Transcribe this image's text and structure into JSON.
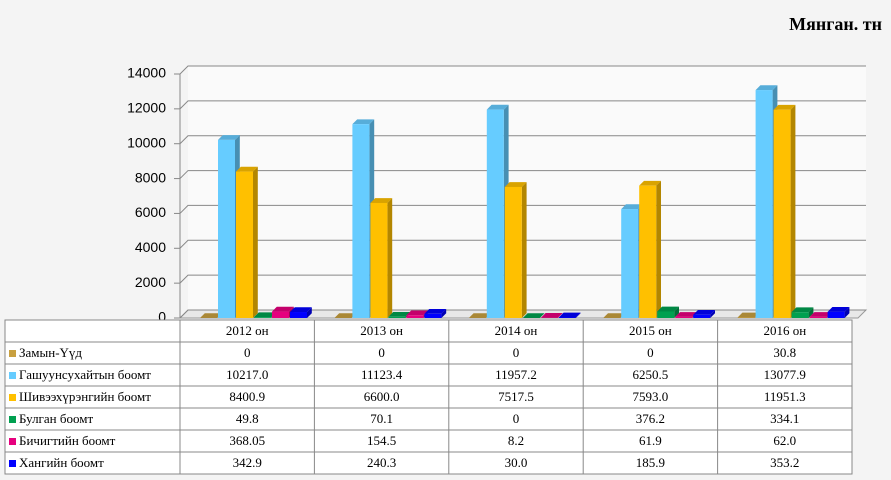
{
  "chart_data": {
    "type": "bar3d",
    "title": "Мянган. тн",
    "categories": [
      "2012 он",
      "2013 он",
      "2014 он",
      "2015 он",
      "2016 он"
    ],
    "ylim": [
      0,
      14000
    ],
    "yticks": [
      0,
      2000,
      4000,
      6000,
      8000,
      10000,
      12000,
      14000
    ],
    "grid": true,
    "series": [
      {
        "name": "Замын-Үүд",
        "color": "#c8a040",
        "values": [
          0,
          0,
          0,
          0,
          30.8
        ],
        "value_labels": [
          "0",
          "0",
          "0",
          "0",
          "30.8"
        ]
      },
      {
        "name": "Гашуунсухайтын боомт",
        "color": "#66ccff",
        "values": [
          10217.0,
          11123.4,
          11957.2,
          6250.5,
          13077.9
        ],
        "value_labels": [
          "10217.0",
          "11123.4",
          "11957.2",
          "6250.5",
          "13077.9"
        ]
      },
      {
        "name": "Шивээхүрэнгийн боомт",
        "color": "#ffc000",
        "values": [
          8400.9,
          6600.0,
          7517.5,
          7593.0,
          11951.3
        ],
        "value_labels": [
          "8400.9",
          "6600.0",
          "7517.5",
          "7593.0",
          "11951.3"
        ]
      },
      {
        "name": "Булган боомт",
        "color": "#00a050",
        "values": [
          49.8,
          70.1,
          0,
          376.2,
          334.1
        ],
        "value_labels": [
          "49.8",
          "70.1",
          "0",
          "376.2",
          "334.1"
        ]
      },
      {
        "name": "Бичигтийн боомт",
        "color": "#e6007e",
        "values": [
          368.05,
          154.5,
          8.2,
          61.9,
          62.0
        ],
        "value_labels": [
          "368.05",
          "154.5",
          "8.2",
          "61.9",
          "62.0"
        ]
      },
      {
        "name": "Хангийн боомт",
        "color": "#0000ff",
        "values": [
          342.9,
          240.3,
          30.0,
          185.9,
          353.2
        ],
        "value_labels": [
          "342.9",
          "240.3",
          "30.0",
          "185.9",
          "353.2"
        ]
      }
    ]
  }
}
